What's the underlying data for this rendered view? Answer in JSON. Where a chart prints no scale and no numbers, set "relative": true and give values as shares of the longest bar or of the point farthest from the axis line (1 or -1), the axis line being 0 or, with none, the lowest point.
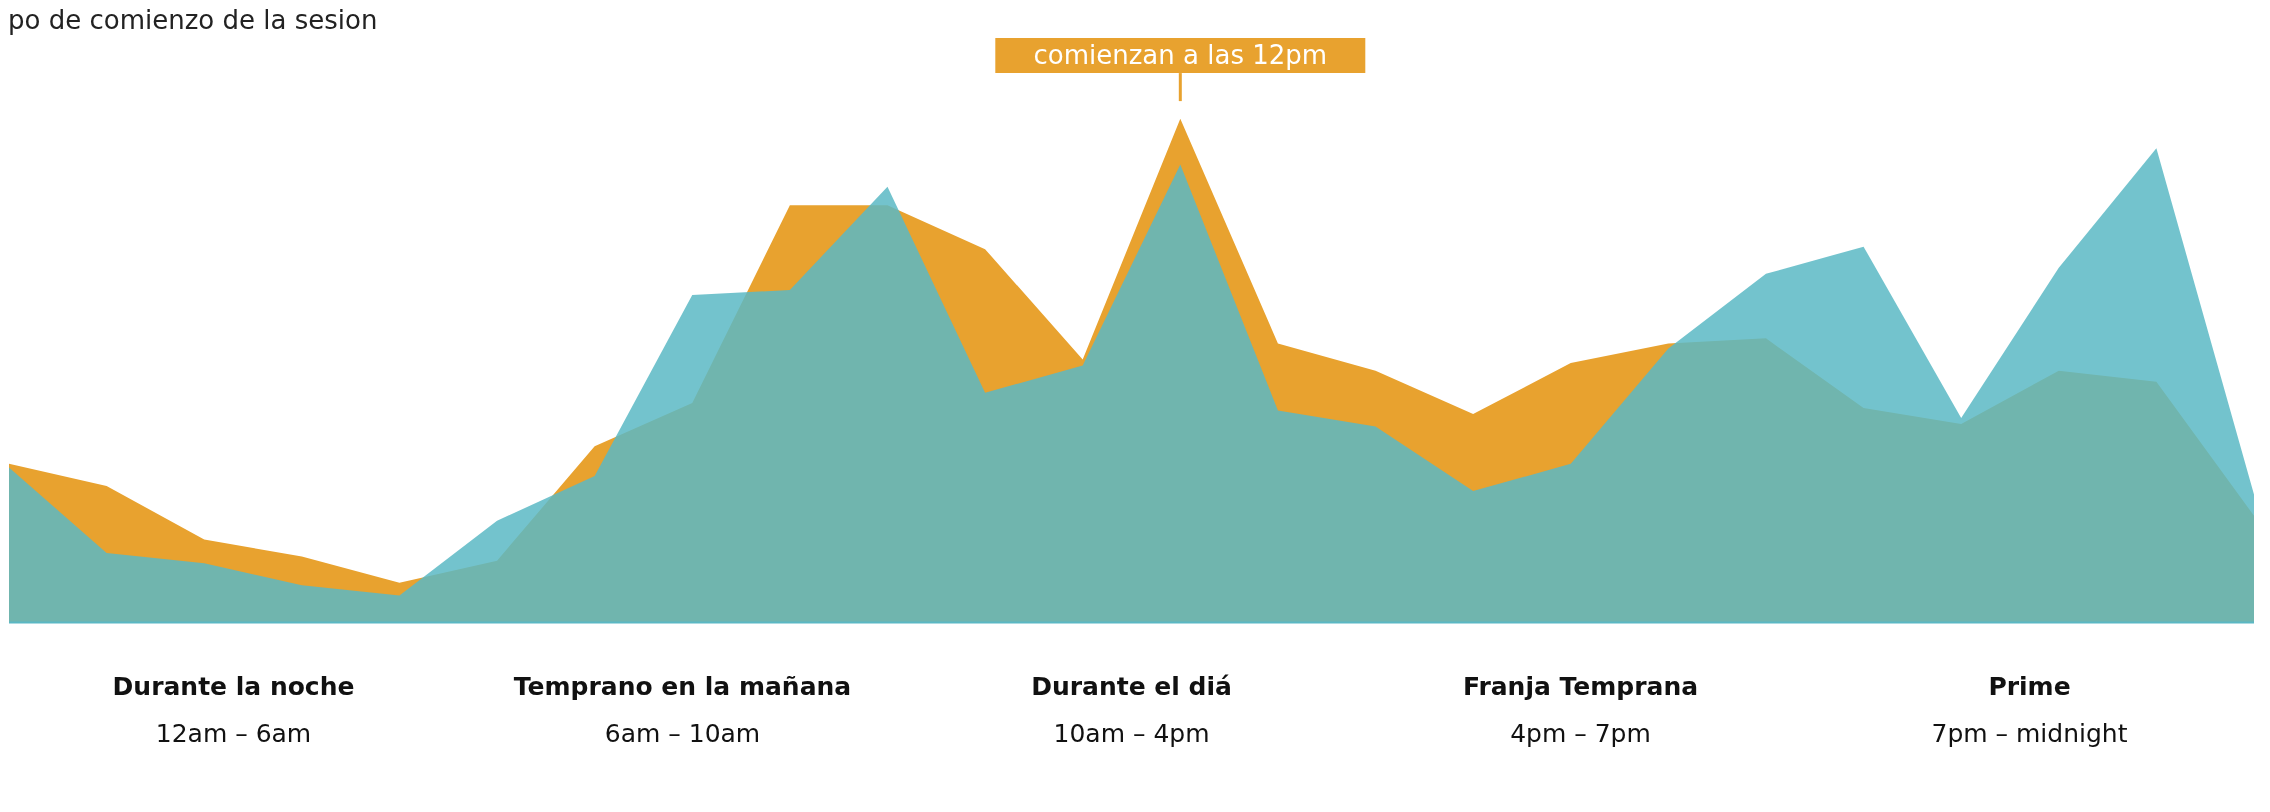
{
  "chart_data": {
    "type": "area",
    "title": "po de comienzo de la sesion",
    "relative": true,
    "categories": [
      null,
      null,
      null,
      null,
      null,
      null,
      null,
      null,
      null,
      null,
      null,
      null,
      null,
      null,
      null,
      null,
      null,
      null,
      null,
      null,
      null,
      null,
      null,
      null
    ],
    "tick_labels": false,
    "series": [
      {
        "color": "#e8a22f",
        "values": [
          0.315,
          0.271,
          0.165,
          0.131,
          0.079,
          0.123,
          0.35,
          0.436,
          0.828,
          0.828,
          0.741,
          0.522,
          1,
          0.554,
          0.5,
          0.414,
          0.515,
          0.554,
          0.564,
          0.426,
          0.394,
          0.5,
          0.478,
          0.212
        ]
      },
      {
        "color": "#5bb8c4",
        "values": [
          0.308,
          0.138,
          0.118,
          0.074,
          0.054,
          0.202,
          0.291,
          0.65,
          0.66,
          0.865,
          0.456,
          0.51,
          0.909,
          0.421,
          0.389,
          0.261,
          0.315,
          0.544,
          0.692,
          0.746,
          0.406,
          0.704,
          0.941,
          0.254
        ]
      }
    ],
    "annotations": [
      "comienzan a las 12pm",
      "Durante la noche\n12am – 6am",
      "Temprano en la mañana\n6am – 10am",
      "Durante el diá\n10am – 4pm",
      "Franja Temprana\n4pm – 7pm",
      "Prime\n7pm – midnight"
    ]
  }
}
